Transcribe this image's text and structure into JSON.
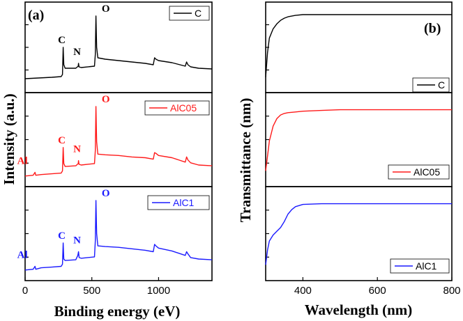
{
  "colors": {
    "C": "#000000",
    "AlC05": "#ff1a1a",
    "AlC1": "#1a1aff",
    "axis": "#000000"
  },
  "chart_data": [
    {
      "type": "line",
      "panel_label": "(a)",
      "xlabel": "Binding energy (eV)",
      "ylabel": "Intensity (a.u.)",
      "xlim": [
        0,
        1400
      ],
      "xticks": [
        0,
        500,
        1000
      ],
      "grid": false,
      "subplots": [
        {
          "legend": "C",
          "color_key": "C",
          "peaks": [
            {
              "label": "C",
              "x": 285
            },
            {
              "label": "N",
              "x": 400
            },
            {
              "label": "O",
              "x": 531
            }
          ],
          "x": [
            0,
            100,
            200,
            270,
            280,
            285,
            290,
            300,
            380,
            398,
            400,
            404,
            420,
            520,
            526,
            531,
            536,
            545,
            600,
            700,
            800,
            900,
            960,
            970,
            980,
            1000,
            1100,
            1200,
            1210,
            1220,
            1240,
            1300,
            1400
          ],
          "y": [
            0.1,
            0.11,
            0.12,
            0.13,
            0.16,
            0.55,
            0.3,
            0.25,
            0.25,
            0.28,
            0.32,
            0.27,
            0.26,
            0.28,
            0.45,
            1.0,
            0.55,
            0.4,
            0.38,
            0.36,
            0.34,
            0.32,
            0.3,
            0.4,
            0.38,
            0.36,
            0.33,
            0.28,
            0.34,
            0.3,
            0.27,
            0.25,
            0.24
          ]
        },
        {
          "legend": "AlC05",
          "color_key": "AlC05",
          "peaks": [
            {
              "label": "Al",
              "x": 74
            },
            {
              "label": "C",
              "x": 285
            },
            {
              "label": "N",
              "x": 400
            },
            {
              "label": "O",
              "x": 531
            }
          ],
          "x": [
            0,
            60,
            74,
            80,
            120,
            200,
            270,
            280,
            285,
            290,
            300,
            380,
            398,
            400,
            404,
            420,
            520,
            526,
            531,
            536,
            545,
            600,
            700,
            800,
            900,
            960,
            970,
            980,
            1000,
            1100,
            1200,
            1210,
            1220,
            1240,
            1300,
            1400
          ],
          "y": [
            0.05,
            0.06,
            0.1,
            0.06,
            0.07,
            0.08,
            0.09,
            0.12,
            0.44,
            0.22,
            0.18,
            0.19,
            0.22,
            0.26,
            0.21,
            0.2,
            0.22,
            0.4,
            1.0,
            0.52,
            0.35,
            0.34,
            0.33,
            0.31,
            0.3,
            0.28,
            0.37,
            0.36,
            0.33,
            0.3,
            0.24,
            0.31,
            0.27,
            0.23,
            0.2,
            0.19
          ]
        },
        {
          "legend": "AlC1",
          "color_key": "AlC1",
          "peaks": [
            {
              "label": "Al",
              "x": 74
            },
            {
              "label": "C",
              "x": 285
            },
            {
              "label": "N",
              "x": 400
            },
            {
              "label": "O",
              "x": 531
            }
          ],
          "x": [
            0,
            60,
            74,
            80,
            120,
            200,
            270,
            280,
            285,
            290,
            300,
            380,
            395,
            400,
            405,
            420,
            520,
            526,
            531,
            536,
            545,
            600,
            700,
            800,
            900,
            960,
            970,
            980,
            1000,
            1100,
            1200,
            1210,
            1220,
            1240,
            1300,
            1400
          ],
          "y": [
            0.05,
            0.06,
            0.1,
            0.06,
            0.08,
            0.09,
            0.1,
            0.13,
            0.42,
            0.2,
            0.18,
            0.19,
            0.25,
            0.3,
            0.22,
            0.21,
            0.23,
            0.45,
            1.0,
            0.55,
            0.38,
            0.37,
            0.36,
            0.34,
            0.32,
            0.3,
            0.4,
            0.38,
            0.35,
            0.31,
            0.25,
            0.3,
            0.27,
            0.22,
            0.2,
            0.19
          ]
        }
      ]
    },
    {
      "type": "line",
      "panel_label": "(b)",
      "xlabel": "Wavelength (nm)",
      "ylabel": "Transmittance (nm)",
      "xlim": [
        300,
        800
      ],
      "xticks": [
        400,
        600,
        800
      ],
      "grid": false,
      "subplots": [
        {
          "legend": "C",
          "color_key": "C",
          "x": [
            300,
            305,
            310,
            320,
            330,
            340,
            350,
            360,
            380,
            400,
            450,
            500,
            600,
            700,
            800
          ],
          "y": [
            0.1,
            0.45,
            0.65,
            0.78,
            0.85,
            0.9,
            0.93,
            0.95,
            0.97,
            0.98,
            0.98,
            0.98,
            0.98,
            0.98,
            0.98
          ]
        },
        {
          "legend": "AlC05",
          "color_key": "AlC05",
          "x": [
            300,
            305,
            310,
            320,
            330,
            340,
            350,
            360,
            380,
            400,
            450,
            500,
            600,
            700,
            800
          ],
          "y": [
            0.1,
            0.3,
            0.5,
            0.7,
            0.8,
            0.85,
            0.87,
            0.88,
            0.89,
            0.9,
            0.91,
            0.92,
            0.92,
            0.92,
            0.92
          ]
        },
        {
          "legend": "AlC1",
          "color_key": "AlC1",
          "x": [
            300,
            305,
            310,
            320,
            330,
            340,
            350,
            360,
            370,
            380,
            400,
            450,
            500,
            600,
            700,
            800
          ],
          "y": [
            0.1,
            0.3,
            0.42,
            0.5,
            0.55,
            0.6,
            0.68,
            0.78,
            0.84,
            0.88,
            0.91,
            0.92,
            0.92,
            0.92,
            0.92,
            0.92
          ]
        }
      ]
    }
  ]
}
